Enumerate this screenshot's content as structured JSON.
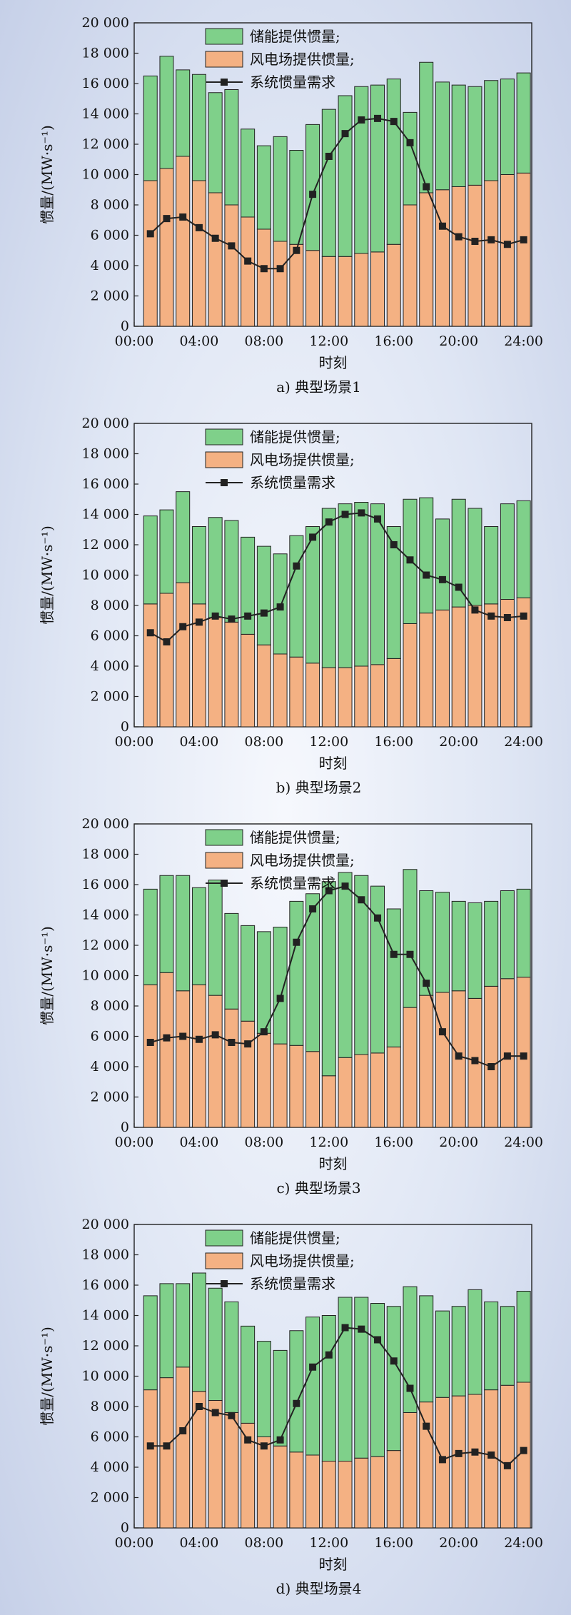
{
  "chart_data": [
    {
      "type": "bar",
      "title": "a) 典型场景1",
      "xlabel": "时刻",
      "ylabel": "惯量/(MW·s⁻¹)",
      "ylim": [
        0,
        20000
      ],
      "yticks": [
        "0",
        "2 000",
        "4 000",
        "6 000",
        "8 000",
        "10 000",
        "12 000",
        "14 000",
        "16 000",
        "18 000",
        "20 000"
      ],
      "xticks": [
        "00:00",
        "04:00",
        "08:00",
        "12:00",
        "16:00",
        "20:00",
        "24:00"
      ],
      "legend_placement": "top-center",
      "stacked": true,
      "categories": [
        1,
        2,
        3,
        4,
        5,
        6,
        7,
        8,
        9,
        10,
        11,
        12,
        13,
        14,
        15,
        16,
        17,
        18,
        19,
        20,
        21,
        22,
        23,
        24
      ],
      "series": [
        {
          "name": "风电场提供惯量;",
          "kind": "bar",
          "color": "#f4b183",
          "values": [
            9600,
            10400,
            11200,
            9600,
            8800,
            8000,
            7200,
            6400,
            5600,
            5400,
            5000,
            4600,
            4600,
            4800,
            4900,
            5400,
            8000,
            8800,
            9000,
            9200,
            9300,
            9600,
            10000,
            10100
          ]
        },
        {
          "name": "储能提供惯量;",
          "kind": "bar",
          "color": "#7fd08a",
          "values": [
            6900,
            7400,
            5700,
            7000,
            6600,
            7600,
            5800,
            5500,
            6900,
            6200,
            8300,
            9700,
            10600,
            11000,
            11000,
            10900,
            6100,
            8600,
            7100,
            6700,
            6500,
            6600,
            6300,
            6600
          ]
        },
        {
          "name": "系统惯量需求",
          "kind": "line",
          "color": "#222222",
          "values": [
            6100,
            7100,
            7200,
            6500,
            5800,
            5300,
            4300,
            3800,
            3800,
            5000,
            8700,
            11200,
            12700,
            13600,
            13700,
            13500,
            12100,
            9200,
            6600,
            5900,
            5600,
            5700,
            5400,
            5700
          ]
        }
      ]
    },
    {
      "type": "bar",
      "title": "b) 典型场景2",
      "xlabel": "时刻",
      "ylabel": "惯量/(MW·s⁻¹)",
      "ylim": [
        0,
        20000
      ],
      "yticks": [
        "0",
        "2 000",
        "4 000",
        "6 000",
        "8 000",
        "10 000",
        "12 000",
        "14 000",
        "16 000",
        "18 000",
        "20 000"
      ],
      "xticks": [
        "00:00",
        "04:00",
        "08:00",
        "12:00",
        "16:00",
        "20:00",
        "24:00"
      ],
      "legend_placement": "top-center",
      "stacked": true,
      "categories": [
        1,
        2,
        3,
        4,
        5,
        6,
        7,
        8,
        9,
        10,
        11,
        12,
        13,
        14,
        15,
        16,
        17,
        18,
        19,
        20,
        21,
        22,
        23,
        24
      ],
      "series": [
        {
          "name": "风电场提供惯量;",
          "kind": "bar",
          "color": "#f4b183",
          "values": [
            8100,
            8800,
            9500,
            8100,
            7200,
            6900,
            6100,
            5400,
            4800,
            4600,
            4200,
            3900,
            3900,
            4000,
            4100,
            4500,
            6800,
            7500,
            7700,
            7900,
            8000,
            8100,
            8400,
            8500
          ]
        },
        {
          "name": "储能提供惯量;",
          "kind": "bar",
          "color": "#7fd08a",
          "values": [
            5800,
            5500,
            6000,
            5100,
            6600,
            6700,
            6400,
            6500,
            6600,
            8000,
            9000,
            10500,
            10800,
            10800,
            10600,
            8700,
            8200,
            7600,
            6000,
            7100,
            6400,
            5100,
            6300,
            6400
          ]
        },
        {
          "name": "系统惯量需求",
          "kind": "line",
          "color": "#222222",
          "values": [
            6200,
            5600,
            6600,
            6900,
            7300,
            7100,
            7300,
            7500,
            7900,
            10600,
            12500,
            13500,
            14000,
            14100,
            13700,
            12000,
            11000,
            10000,
            9700,
            9200,
            7700,
            7300,
            7200,
            7300
          ]
        }
      ]
    },
    {
      "type": "bar",
      "title": "c) 典型场景3",
      "xlabel": "时刻",
      "ylabel": "惯量/(MW·s⁻¹)",
      "ylim": [
        0,
        20000
      ],
      "yticks": [
        "0",
        "2 000",
        "4 000",
        "6 000",
        "8 000",
        "10 000",
        "12 000",
        "14 000",
        "16 000",
        "18 000",
        "20 000"
      ],
      "xticks": [
        "00:00",
        "04:00",
        "08:00",
        "12:00",
        "16:00",
        "20:00",
        "24:00"
      ],
      "legend_placement": "top-center",
      "stacked": true,
      "categories": [
        1,
        2,
        3,
        4,
        5,
        6,
        7,
        8,
        9,
        10,
        11,
        12,
        13,
        14,
        15,
        16,
        17,
        18,
        19,
        20,
        21,
        22,
        23,
        24
      ],
      "series": [
        {
          "name": "风电场提供惯量;",
          "kind": "bar",
          "color": "#f4b183",
          "values": [
            9400,
            10200,
            9000,
            9400,
            8700,
            7800,
            7000,
            6200,
            5500,
            5400,
            5000,
            3400,
            4600,
            4800,
            4900,
            5300,
            7900,
            8700,
            8900,
            9000,
            8500,
            9300,
            9800,
            9900
          ]
        },
        {
          "name": "储能提供惯量;",
          "kind": "bar",
          "color": "#7fd08a",
          "values": [
            6300,
            6400,
            7600,
            6400,
            7600,
            6300,
            6300,
            6700,
            7700,
            9500,
            10400,
            12800,
            12200,
            11800,
            11000,
            9100,
            9100,
            6900,
            6600,
            5900,
            6300,
            5600,
            5800,
            5800
          ]
        },
        {
          "name": "系统惯量需求",
          "kind": "line",
          "color": "#222222",
          "values": [
            5600,
            5900,
            6000,
            5800,
            6100,
            5600,
            5500,
            6300,
            8500,
            12200,
            14400,
            15600,
            15900,
            15000,
            13800,
            11400,
            11400,
            9500,
            6300,
            4700,
            4400,
            4000,
            4700,
            4700
          ]
        }
      ]
    },
    {
      "type": "bar",
      "title": "d) 典型场景4",
      "xlabel": "时刻",
      "ylabel": "惯量/(MW·s⁻¹)",
      "ylim": [
        0,
        20000
      ],
      "yticks": [
        "0",
        "2 000",
        "4 000",
        "6 000",
        "8 000",
        "10 000",
        "12 000",
        "14 000",
        "16 000",
        "18 000",
        "20 000"
      ],
      "xticks": [
        "00:00",
        "04:00",
        "08:00",
        "12:00",
        "16:00",
        "20:00",
        "24:00"
      ],
      "legend_placement": "top-center",
      "stacked": true,
      "categories": [
        1,
        2,
        3,
        4,
        5,
        6,
        7,
        8,
        9,
        10,
        11,
        12,
        13,
        14,
        15,
        16,
        17,
        18,
        19,
        20,
        21,
        22,
        23,
        24
      ],
      "series": [
        {
          "name": "风电场提供惯量;",
          "kind": "bar",
          "color": "#f4b183",
          "values": [
            9100,
            9900,
            10600,
            9000,
            8400,
            7600,
            6900,
            6000,
            5400,
            5000,
            4800,
            4400,
            4400,
            4600,
            4700,
            5100,
            7600,
            8300,
            8600,
            8700,
            8800,
            9100,
            9400,
            9600
          ]
        },
        {
          "name": "储能提供惯量;",
          "kind": "bar",
          "color": "#7fd08a",
          "values": [
            6200,
            6200,
            5500,
            7800,
            7400,
            7300,
            6400,
            6300,
            6300,
            8000,
            9100,
            9600,
            10800,
            10600,
            10100,
            9500,
            8300,
            7000,
            5700,
            5900,
            6900,
            5800,
            5200,
            6000
          ]
        },
        {
          "name": "系统惯量需求",
          "kind": "line",
          "color": "#222222",
          "values": [
            5400,
            5400,
            6400,
            8000,
            7600,
            7400,
            5800,
            5400,
            5800,
            8200,
            10600,
            11400,
            13200,
            13100,
            12400,
            11000,
            9200,
            6700,
            4500,
            4900,
            5000,
            4800,
            4100,
            5100
          ]
        }
      ]
    }
  ]
}
